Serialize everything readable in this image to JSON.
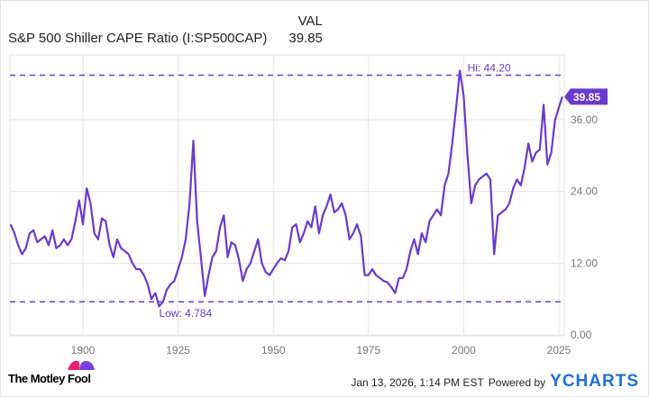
{
  "header": {
    "value_column_label": "VAL",
    "series_label": "S&P 500 Shiller CAPE Ratio (I:SP500CAP)",
    "series_value": "39.85"
  },
  "footer": {
    "brand": "The Motley Fool",
    "timestamp": "Jan 13, 2026, 1:14 PM EST",
    "powered_by": "Powered by",
    "provider": "YCHARTS"
  },
  "colors": {
    "line": "#6a3ad0",
    "grid": "#e6e6e6",
    "axis_text": "#777777",
    "provider": "#1e6fd9"
  },
  "chart_data": {
    "type": "line",
    "title": "",
    "xlim": [
      1881,
      2026
    ],
    "ylim": [
      0,
      48
    ],
    "x_ticks": [
      "1900",
      "1925",
      "1950",
      "1975",
      "2000",
      "2025"
    ],
    "y_ticks": [
      "0.00",
      "12.00",
      "24.00",
      "36.00"
    ],
    "y_axis_side": "right",
    "grid": true,
    "hi": {
      "label": "Hi: 44.20",
      "value": 44.2
    },
    "low": {
      "label": "Low: 4.784",
      "value": 4.784
    },
    "last": {
      "label": "39.85",
      "value": 39.85
    },
    "series": [
      {
        "x": [
          1881,
          1882,
          1883,
          1884,
          1885,
          1886,
          1887,
          1888,
          1889,
          1890,
          1891,
          1892,
          1893,
          1894,
          1895,
          1896,
          1897,
          1898,
          1899,
          1900,
          1901,
          1902,
          1903,
          1904,
          1905,
          1906,
          1907,
          1908,
          1909,
          1910,
          1911,
          1912,
          1913,
          1914,
          1915,
          1916,
          1917,
          1918,
          1919,
          1920,
          1921,
          1922,
          1923,
          1924,
          1925,
          1926,
          1927,
          1928,
          1929,
          1930,
          1931,
          1932,
          1933,
          1934,
          1935,
          1936,
          1937,
          1938,
          1939,
          1940,
          1941,
          1942,
          1943,
          1944,
          1945,
          1946,
          1947,
          1948,
          1949,
          1950,
          1951,
          1952,
          1953,
          1954,
          1955,
          1956,
          1957,
          1958,
          1959,
          1960,
          1961,
          1962,
          1963,
          1964,
          1965,
          1966,
          1967,
          1968,
          1969,
          1970,
          1971,
          1972,
          1973,
          1974,
          1975,
          1976,
          1977,
          1978,
          1979,
          1980,
          1981,
          1982,
          1983,
          1984,
          1985,
          1986,
          1987,
          1988,
          1989,
          1990,
          1991,
          1992,
          1993,
          1994,
          1995,
          1996,
          1997,
          1998,
          1999,
          2000,
          2001,
          2002,
          2003,
          2004,
          2005,
          2006,
          2007,
          2008,
          2009,
          2010,
          2011,
          2012,
          2013,
          2014,
          2015,
          2016,
          2017,
          2018,
          2019,
          2020,
          2021,
          2022,
          2023,
          2024,
          2025.9
        ],
        "values": [
          18.5,
          17,
          15,
          13.5,
          14.5,
          17,
          17.5,
          15.5,
          16,
          16.5,
          15,
          17.5,
          14.5,
          15,
          16,
          15,
          16,
          19,
          22.5,
          18.5,
          24.5,
          22,
          17,
          16,
          19.5,
          19,
          15,
          13,
          16,
          14.5,
          14,
          13.5,
          12,
          11,
          11,
          10,
          8.5,
          6,
          7,
          4.784,
          5.5,
          7.5,
          8.5,
          9,
          11,
          13,
          16,
          22,
          32.5,
          19,
          13,
          6.5,
          10,
          13,
          14,
          18,
          20,
          13,
          15.5,
          15,
          12.5,
          9,
          11,
          12,
          14,
          16,
          12,
          10.5,
          10,
          11,
          12,
          12.8,
          12.5,
          14,
          18,
          18.5,
          15.5,
          17,
          19,
          18,
          21.5,
          17,
          20,
          21.5,
          23.5,
          20.5,
          21,
          22,
          20,
          16,
          17,
          18.5,
          16.5,
          10,
          10,
          11,
          10,
          9.5,
          9,
          8.8,
          8,
          7,
          9.5,
          9.5,
          11,
          14,
          16,
          13.5,
          17,
          15.5,
          19,
          20,
          21,
          20,
          25,
          27,
          32,
          38,
          44.2,
          40,
          30,
          22,
          25,
          26,
          26.5,
          27,
          26,
          13.5,
          20,
          20.5,
          21,
          22,
          24.5,
          26,
          25,
          28,
          32,
          29,
          30.5,
          31,
          38.5,
          28.5,
          30.5,
          36,
          39.85
        ]
      }
    ]
  }
}
